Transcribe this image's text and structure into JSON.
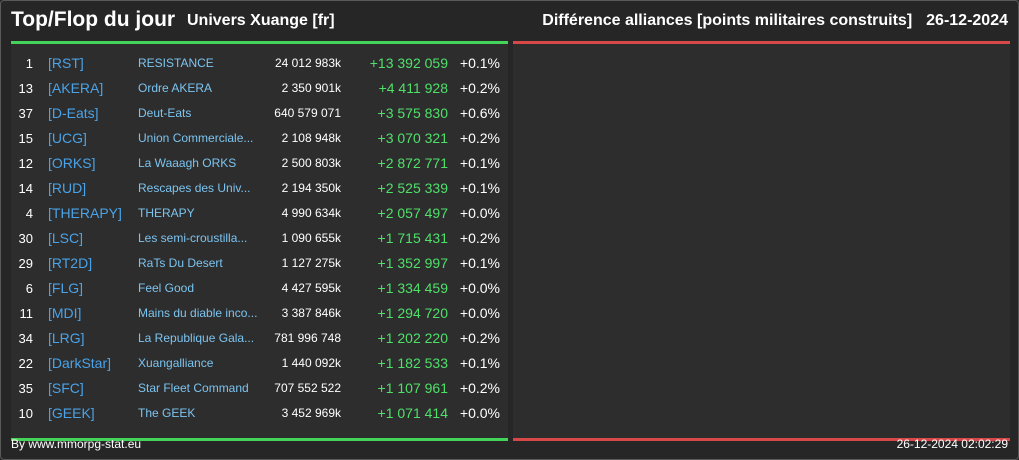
{
  "header": {
    "title": "Top/Flop du jour",
    "universe": "Univers Xuange [fr]",
    "subject": "Différence alliances [points militaires construits]",
    "date": "26-12-2024"
  },
  "colors": {
    "background": "#262626",
    "panel": "#2d2d2d",
    "top_accent": "#45d45a",
    "flop_accent": "#d84848",
    "tag": "#4aa3e8",
    "name": "#7cc4f0",
    "gain": "#4fe06a"
  },
  "top": [
    {
      "rank": "1",
      "tag": "[RST]",
      "name": "RESISTANCE",
      "points": "24 012 983k",
      "diff": "+13 392 059",
      "pct": "+0.1%"
    },
    {
      "rank": "13",
      "tag": "[AKERA]",
      "name": "Ordre AKERA",
      "points": "2 350 901k",
      "diff": "+4 411 928",
      "pct": "+0.2%"
    },
    {
      "rank": "37",
      "tag": "[D-Eats]",
      "name": "Deut-Eats",
      "points": "640 579 071",
      "diff": "+3 575 830",
      "pct": "+0.6%"
    },
    {
      "rank": "15",
      "tag": "[UCG]",
      "name": "Union Commerciale...",
      "points": "2 108 948k",
      "diff": "+3 070 321",
      "pct": "+0.2%"
    },
    {
      "rank": "12",
      "tag": "[ORKS]",
      "name": "La Waaagh ORKS",
      "points": "2 500 803k",
      "diff": "+2 872 771",
      "pct": "+0.1%"
    },
    {
      "rank": "14",
      "tag": "[RUD]",
      "name": "Rescapes des Univ...",
      "points": "2 194 350k",
      "diff": "+2 525 339",
      "pct": "+0.1%"
    },
    {
      "rank": "4",
      "tag": "[THERAPY]",
      "name": "THERAPY",
      "points": "4 990 634k",
      "diff": "+2 057 497",
      "pct": "+0.0%"
    },
    {
      "rank": "30",
      "tag": "[LSC]",
      "name": "Les semi-croustilla...",
      "points": "1 090 655k",
      "diff": "+1 715 431",
      "pct": "+0.2%"
    },
    {
      "rank": "29",
      "tag": "[RT2D]",
      "name": "RaTs Du Desert",
      "points": "1 127 275k",
      "diff": "+1 352 997",
      "pct": "+0.1%"
    },
    {
      "rank": "6",
      "tag": "[FLG]",
      "name": "Feel Good",
      "points": "4 427 595k",
      "diff": "+1 334 459",
      "pct": "+0.0%"
    },
    {
      "rank": "11",
      "tag": "[MDI]",
      "name": "Mains du diable inco...",
      "points": "3 387 846k",
      "diff": "+1 294 720",
      "pct": "+0.0%"
    },
    {
      "rank": "34",
      "tag": "[LRG]",
      "name": "La Republique Gala...",
      "points": "781 996 748",
      "diff": "+1 202 220",
      "pct": "+0.2%"
    },
    {
      "rank": "22",
      "tag": "[DarkStar]",
      "name": "Xuangalliance",
      "points": "1 440 092k",
      "diff": "+1 182 533",
      "pct": "+0.1%"
    },
    {
      "rank": "35",
      "tag": "[SFC]",
      "name": "Star Fleet Command",
      "points": "707 552 522",
      "diff": "+1 107 961",
      "pct": "+0.2%"
    },
    {
      "rank": "10",
      "tag": "[GEEK]",
      "name": "The GEEK",
      "points": "3 452 969k",
      "diff": "+1 071 414",
      "pct": "+0.0%"
    }
  ],
  "flop": [],
  "footer": {
    "source": "By www.mmorpg-stat.eu",
    "timestamp": "26-12-2024 02:02:29"
  }
}
